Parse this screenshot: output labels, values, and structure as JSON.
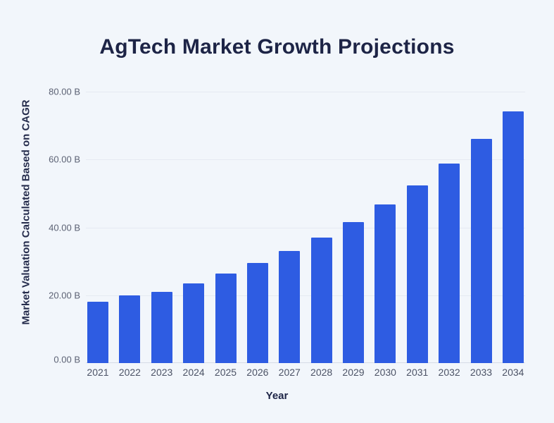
{
  "chart_data": {
    "type": "bar",
    "title": "AgTech Market Growth Projections",
    "xlabel": "Year",
    "ylabel": "Market Valuation Calculated Based on CAGR",
    "categories": [
      "2021",
      "2022",
      "2023",
      "2024",
      "2025",
      "2026",
      "2027",
      "2028",
      "2029",
      "2030",
      "2031",
      "2032",
      "2033",
      "2034"
    ],
    "values": [
      18.1,
      20.0,
      21.0,
      23.5,
      26.4,
      29.5,
      33.0,
      37.0,
      41.6,
      46.7,
      52.4,
      58.8,
      66.0,
      74.1
    ],
    "ylim": [
      0,
      80
    ],
    "yticks": [
      {
        "value": 0,
        "label": "0.00 B"
      },
      {
        "value": 20,
        "label": "20.00 B"
      },
      {
        "value": 40,
        "label": "40.00 B"
      },
      {
        "value": 60,
        "label": "60.00 B"
      },
      {
        "value": 80,
        "label": "80.00 B"
      }
    ],
    "grid": "horizontal",
    "legend": "none",
    "bar_color": "#2e5ce2",
    "background_color": "#f2f6fb"
  }
}
